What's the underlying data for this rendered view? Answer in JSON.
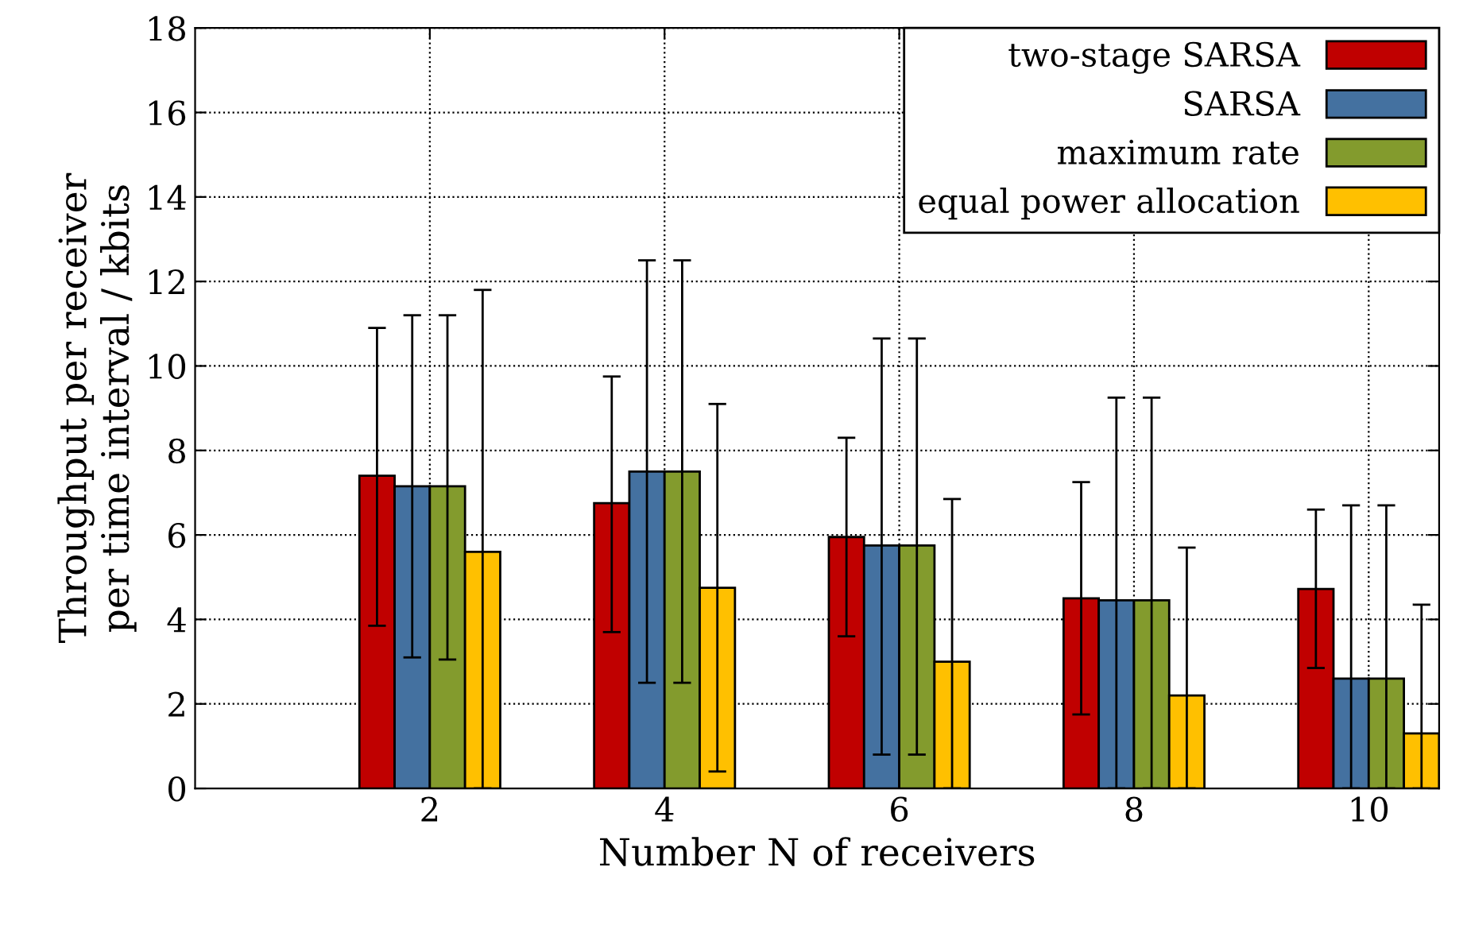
{
  "chart_data": {
    "type": "bar",
    "xlabel": "Number N of receivers",
    "ylabel": "Throughput per receiver\nper time interval / kbits",
    "x": [
      2,
      4,
      6,
      8,
      10
    ],
    "xlim": [
      0,
      10.6
    ],
    "xticks": [
      2,
      4,
      6,
      8,
      10
    ],
    "ylim": [
      0,
      18
    ],
    "yticks": [
      0,
      2,
      4,
      6,
      8,
      10,
      12,
      14,
      16,
      18
    ],
    "grid": true,
    "legend": "top right",
    "series": [
      {
        "name": "two-stage SARSA",
        "color": "#c00000",
        "values": [
          7.4,
          6.75,
          5.95,
          4.5,
          4.72
        ],
        "errors": [
          [
            3.85,
            10.9
          ],
          [
            3.7,
            9.75
          ],
          [
            3.6,
            8.3
          ],
          [
            1.75,
            7.25
          ],
          [
            2.85,
            6.6
          ]
        ]
      },
      {
        "name": "SARSA",
        "color": "#4471a0",
        "values": [
          7.15,
          7.5,
          5.75,
          4.45,
          2.6
        ],
        "errors": [
          [
            3.1,
            11.2
          ],
          [
            2.5,
            12.5
          ],
          [
            0.8,
            10.65
          ],
          [
            0,
            9.25
          ],
          [
            0,
            6.7
          ]
        ]
      },
      {
        "name": "maximum rate",
        "color": "#839b2d",
        "values": [
          7.15,
          7.5,
          5.75,
          4.45,
          2.6
        ],
        "errors": [
          [
            3.05,
            11.2
          ],
          [
            2.5,
            12.5
          ],
          [
            0.8,
            10.65
          ],
          [
            0,
            9.25
          ],
          [
            0,
            6.7
          ]
        ]
      },
      {
        "name": "equal power allocation",
        "color": "#ffc000",
        "values": [
          5.6,
          4.75,
          3.0,
          2.2,
          1.3
        ],
        "errors": [
          [
            0,
            11.8
          ],
          [
            0.4,
            9.1
          ],
          [
            0,
            6.85
          ],
          [
            0,
            5.7
          ],
          [
            0,
            4.35
          ]
        ]
      }
    ]
  }
}
